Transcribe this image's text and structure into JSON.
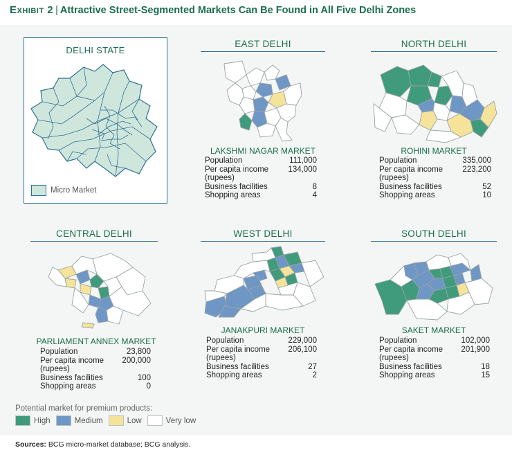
{
  "exhibit": {
    "label": "Exhibit 2",
    "separator": "|",
    "title": "Attractive Street-Segmented Markets Can Be Found in All Five Delhi Zones"
  },
  "state": {
    "title": "DELHI STATE",
    "legend_label": "Micro Market"
  },
  "zones": [
    {
      "name": "EAST DELHI",
      "market": "LAKSHMI NAGAR MARKET",
      "stats": [
        {
          "label": "Population",
          "value": "111,000"
        },
        {
          "label": "Per capita income",
          "value": "134,000"
        },
        {
          "label": "(rupees)",
          "value": ""
        },
        {
          "label": "Business facilities",
          "value": "8"
        },
        {
          "label": "Shopping areas",
          "value": "4"
        }
      ]
    },
    {
      "name": "NORTH DELHI",
      "market": "ROHINI MARKET",
      "stats": [
        {
          "label": "Population",
          "value": "335,000"
        },
        {
          "label": "Per capita income",
          "value": "223,200"
        },
        {
          "label": "(rupees)",
          "value": ""
        },
        {
          "label": "Business facilities",
          "value": "52"
        },
        {
          "label": "Shopping areas",
          "value": "10"
        }
      ]
    },
    {
      "name": "CENTRAL DELHI",
      "market": "PARLIAMENT ANNEX MARKET",
      "stats": [
        {
          "label": "Population",
          "value": "23,800"
        },
        {
          "label": "Per capita income",
          "value": "200,000"
        },
        {
          "label": "(rupees)",
          "value": ""
        },
        {
          "label": "Business facilities",
          "value": "100"
        },
        {
          "label": "Shopping areas",
          "value": "0"
        }
      ]
    },
    {
      "name": "WEST DELHI",
      "market": "JANAKPURI MARKET",
      "stats": [
        {
          "label": "Population",
          "value": "229,000"
        },
        {
          "label": "Per capita income",
          "value": "206,100"
        },
        {
          "label": "(rupees)",
          "value": ""
        },
        {
          "label": "Business facilities",
          "value": "27"
        },
        {
          "label": "Shopping areas",
          "value": "2"
        }
      ]
    },
    {
      "name": "SOUTH DELHI",
      "market": "SAKET MARKET",
      "stats": [
        {
          "label": "Population",
          "value": "102,000"
        },
        {
          "label": "Per capita income",
          "value": "201,900"
        },
        {
          "label": "(rupees)",
          "value": ""
        },
        {
          "label": "Business facilities",
          "value": "18"
        },
        {
          "label": "Shopping areas",
          "value": "15"
        }
      ]
    }
  ],
  "legend": {
    "caption": "Potential market for premium products:",
    "items": [
      {
        "label": "High",
        "color": "#3f9b7c"
      },
      {
        "label": "Medium",
        "color": "#6f97c6"
      },
      {
        "label": "Low",
        "color": "#f5e39a"
      },
      {
        "label": "Very low",
        "color": "#ffffff"
      }
    ]
  },
  "sources": {
    "label": "Sources:",
    "text": "BCG micro-market database; BCG analysis."
  },
  "colors": {
    "accent": "#1a6e4c",
    "rule": "#2f6f8f",
    "micro_market_fill": "#cfe6dd"
  }
}
